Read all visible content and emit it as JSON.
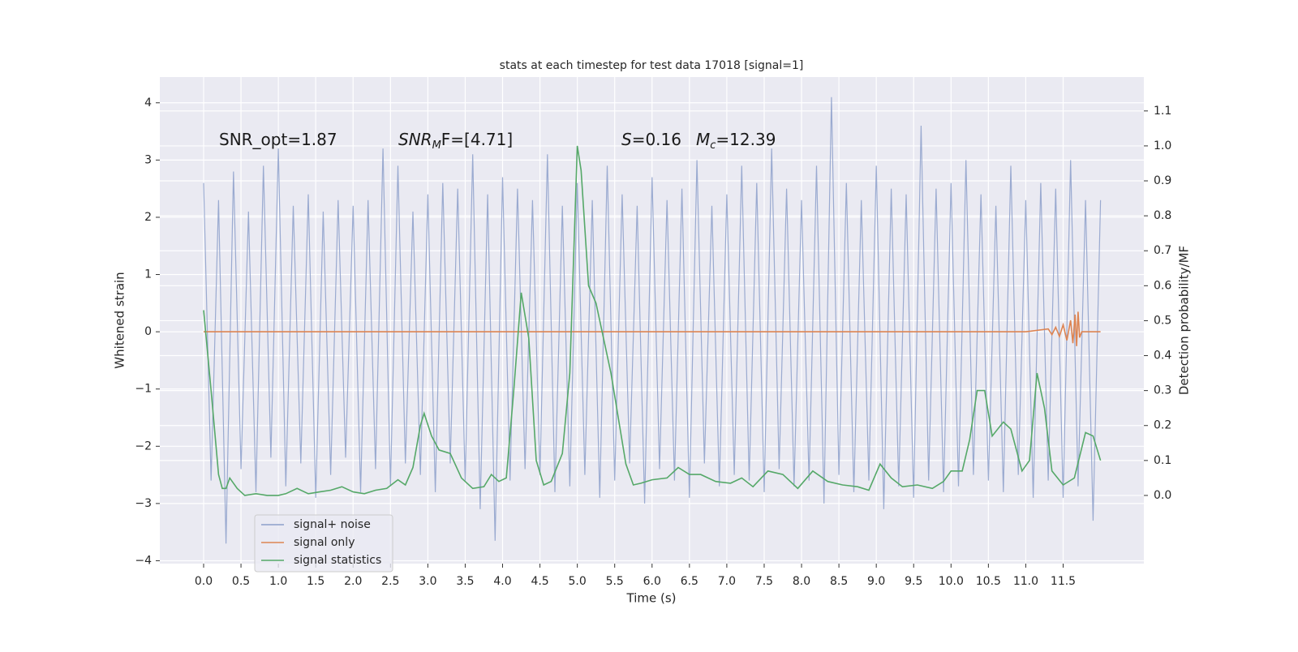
{
  "chart_data": {
    "type": "line",
    "title": "stats at each timestep for test data 17018 [signal=1]",
    "xlabel": "Time (s)",
    "ylabel": "Whitened strain",
    "y2label": "Detection probability/MF",
    "annotations": [
      {
        "text": "SNR_opt=1.87"
      },
      {
        "text": "SNR",
        "sub": "M",
        "tail": "F=[4.71]"
      },
      {
        "text": "S",
        "tail": "=0.16"
      },
      {
        "text": "M",
        "sub": "c",
        "tail": "=12.39"
      }
    ],
    "xlim": [
      -0.586,
      12.58
    ],
    "ylim": [
      -4.05,
      4.45
    ],
    "y2lim": [
      -0.195,
      1.197
    ],
    "xticks": [
      {
        "value": 0,
        "label": "0.0"
      },
      {
        "value": 0.5,
        "label": "0.5"
      },
      {
        "value": 1,
        "label": "1.0"
      },
      {
        "value": 1.5,
        "label": "1.5"
      },
      {
        "value": 2,
        "label": "2.0"
      },
      {
        "value": 2.5,
        "label": "2.5"
      },
      {
        "value": 3,
        "label": "3.0"
      },
      {
        "value": 3.5,
        "label": "3.5"
      },
      {
        "value": 4,
        "label": "4.0"
      },
      {
        "value": 4.5,
        "label": "4.5"
      },
      {
        "value": 5,
        "label": "5.0"
      },
      {
        "value": 5.5,
        "label": "5.5"
      },
      {
        "value": 6,
        "label": "6.0"
      },
      {
        "value": 6.5,
        "label": "6.5"
      },
      {
        "value": 7,
        "label": "7.0"
      },
      {
        "value": 7.5,
        "label": "7.5"
      },
      {
        "value": 8,
        "label": "8.0"
      },
      {
        "value": 8.5,
        "label": "8.5"
      },
      {
        "value": 9,
        "label": "9.0"
      },
      {
        "value": 9.5,
        "label": "9.5"
      },
      {
        "value": 10,
        "label": "10.0"
      },
      {
        "value": 10.5,
        "label": "10.5"
      },
      {
        "value": 11,
        "label": "11.0"
      },
      {
        "value": 11.5,
        "label": "11.5"
      }
    ],
    "yticks": [
      4,
      3,
      2,
      1,
      0,
      {
        "value": -1,
        "label": "−1"
      },
      {
        "value": -2,
        "label": "−2"
      },
      {
        "value": -3,
        "label": "−3"
      },
      {
        "value": -4,
        "label": "−4"
      }
    ],
    "y2ticks": [
      {
        "value": 0,
        "label": "0.0"
      },
      {
        "value": 0.1,
        "label": "0.1"
      },
      {
        "value": 0.2,
        "label": "0.2"
      },
      {
        "value": 0.3,
        "label": "0.3"
      },
      {
        "value": 0.4,
        "label": "0.4"
      },
      {
        "value": 0.5,
        "label": "0.5"
      },
      {
        "value": 0.6,
        "label": "0.6"
      },
      {
        "value": 0.7,
        "label": "0.7"
      },
      {
        "value": 0.8,
        "label": "0.8"
      },
      {
        "value": 0.9,
        "label": "0.9"
      },
      {
        "value": 1,
        "label": "1.0"
      },
      {
        "value": 1.1,
        "label": "1.1"
      }
    ],
    "grid": true,
    "legend": "lower left",
    "series": [
      {
        "name": "signal+ noise",
        "color": "#8c9fca",
        "x": [
          0,
          0.1,
          0.2,
          0.3,
          0.4,
          0.5,
          0.6,
          0.7,
          0.8,
          0.9,
          1,
          1.1,
          1.2,
          1.3,
          1.4,
          1.5,
          1.6,
          1.7,
          1.8,
          1.9,
          2,
          2.1,
          2.2,
          2.3,
          2.4,
          2.5,
          2.6,
          2.7,
          2.8,
          2.9,
          3,
          3.1,
          3.2,
          3.3,
          3.4,
          3.5,
          3.6,
          3.7,
          3.8,
          3.9,
          4,
          4.1,
          4.2,
          4.3,
          4.4,
          4.5,
          4.6,
          4.7,
          4.8,
          4.9,
          5,
          5.1,
          5.2,
          5.3,
          5.4,
          5.5,
          5.6,
          5.7,
          5.8,
          5.9,
          6,
          6.1,
          6.2,
          6.3,
          6.4,
          6.5,
          6.6,
          6.7,
          6.8,
          6.9,
          7,
          7.1,
          7.2,
          7.3,
          7.4,
          7.5,
          7.6,
          7.7,
          7.8,
          7.9,
          8,
          8.1,
          8.2,
          8.3,
          8.4,
          8.5,
          8.6,
          8.7,
          8.8,
          8.9,
          9,
          9.1,
          9.2,
          9.3,
          9.4,
          9.5,
          9.6,
          9.7,
          9.8,
          9.9,
          10,
          10.1,
          10.2,
          10.3,
          10.4,
          10.5,
          10.6,
          10.7,
          10.8,
          10.9,
          11,
          11.1,
          11.2,
          11.3,
          11.4,
          11.5,
          11.6,
          11.7,
          11.8,
          11.9,
          12
        ],
        "values": [
          2.6,
          -2.6,
          2.3,
          -3.7,
          2.8,
          -2.4,
          2.1,
          -2.8,
          2.9,
          -2.2,
          3.2,
          -2.7,
          2.2,
          -2.3,
          2.4,
          -2.9,
          2.1,
          -2.5,
          2.3,
          -2.2,
          2.2,
          -2.8,
          2.3,
          -2.4,
          3.2,
          -2.7,
          2.9,
          -2.3,
          2.1,
          -2.5,
          2.4,
          -2.8,
          2.6,
          -2.3,
          2.5,
          -2.6,
          3.1,
          -3.1,
          2.4,
          -3.65,
          2.7,
          -2.6,
          2.5,
          -2.4,
          2.3,
          -2.5,
          3.1,
          -2.8,
          2.2,
          -2.7,
          2.6,
          -2.5,
          2.3,
          -2.9,
          2.9,
          -2.6,
          2.4,
          -2.3,
          2.2,
          -3.0,
          2.7,
          -2.4,
          2.3,
          -2.6,
          2.5,
          -2.9,
          3.0,
          -2.3,
          2.2,
          -2.7,
          2.4,
          -2.5,
          2.9,
          -2.6,
          2.6,
          -2.8,
          3.2,
          -2.4,
          2.5,
          -2.7,
          2.3,
          -2.6,
          2.9,
          -3.0,
          4.1,
          -2.5,
          2.6,
          -2.8,
          2.3,
          -2.6,
          2.9,
          -3.1,
          2.5,
          -2.7,
          2.4,
          -2.9,
          3.6,
          -2.6,
          2.5,
          -2.8,
          2.6,
          -2.7,
          3.0,
          -2.5,
          2.4,
          -2.6,
          2.2,
          -2.8,
          2.9,
          -2.5,
          2.3,
          -2.9,
          2.6,
          -2.6,
          2.5,
          -2.9,
          3.0,
          -2.7,
          2.3,
          -3.3,
          2.3
        ]
      },
      {
        "name": "signal only",
        "color": "#dd8452",
        "x": [
          0,
          11,
          11.3,
          11.35,
          11.4,
          11.45,
          11.5,
          11.55,
          11.6,
          11.63,
          11.66,
          11.68,
          11.7,
          11.72,
          11.75,
          12
        ],
        "values": [
          0,
          0,
          0.05,
          -0.05,
          0.08,
          -0.08,
          0.12,
          -0.15,
          0.2,
          -0.2,
          0.3,
          -0.25,
          0.35,
          -0.1,
          0,
          0
        ]
      },
      {
        "name": "signal statistics",
        "color": "#55a868",
        "axis": "y2",
        "x": [
          0,
          0.1,
          0.2,
          0.25,
          0.3,
          0.35,
          0.45,
          0.55,
          0.7,
          0.85,
          1,
          1.1,
          1.25,
          1.4,
          1.55,
          1.7,
          1.85,
          2,
          2.15,
          2.3,
          2.45,
          2.6,
          2.7,
          2.8,
          2.9,
          2.95,
          3.05,
          3.15,
          3.3,
          3.45,
          3.6,
          3.75,
          3.85,
          3.95,
          4.05,
          4.15,
          4.25,
          4.35,
          4.45,
          4.55,
          4.65,
          4.8,
          4.9,
          5,
          5.05,
          5.15,
          5.25,
          5.45,
          5.65,
          5.75,
          5.85,
          6,
          6.2,
          6.35,
          6.5,
          6.65,
          6.85,
          7.05,
          7.2,
          7.35,
          7.55,
          7.75,
          7.95,
          8.15,
          8.35,
          8.55,
          8.75,
          8.9,
          9.05,
          9.2,
          9.35,
          9.55,
          9.75,
          9.9,
          10,
          10.15,
          10.25,
          10.35,
          10.45,
          10.55,
          10.7,
          10.8,
          10.95,
          11.05,
          11.15,
          11.25,
          11.35,
          11.5,
          11.65,
          11.8,
          11.9,
          12
        ],
        "values": [
          0.53,
          0.3,
          0.06,
          0.02,
          0.02,
          0.05,
          0.02,
          0.0,
          0.005,
          0.0,
          0.0,
          0.005,
          0.02,
          0.005,
          0.01,
          0.015,
          0.025,
          0.01,
          0.005,
          0.015,
          0.02,
          0.045,
          0.03,
          0.08,
          0.2,
          0.235,
          0.17,
          0.13,
          0.12,
          0.05,
          0.02,
          0.025,
          0.06,
          0.04,
          0.05,
          0.3,
          0.58,
          0.45,
          0.1,
          0.03,
          0.04,
          0.12,
          0.35,
          1.0,
          0.93,
          0.6,
          0.55,
          0.35,
          0.09,
          0.03,
          0.035,
          0.045,
          0.05,
          0.08,
          0.06,
          0.06,
          0.04,
          0.035,
          0.05,
          0.025,
          0.07,
          0.06,
          0.02,
          0.07,
          0.04,
          0.03,
          0.025,
          0.015,
          0.09,
          0.05,
          0.025,
          0.03,
          0.02,
          0.04,
          0.07,
          0.07,
          0.16,
          0.3,
          0.3,
          0.17,
          0.21,
          0.19,
          0.07,
          0.1,
          0.35,
          0.25,
          0.07,
          0.03,
          0.05,
          0.18,
          0.17,
          0.1
        ]
      }
    ]
  }
}
